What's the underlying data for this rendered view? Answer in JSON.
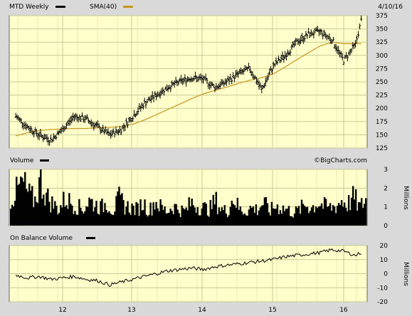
{
  "header": {
    "symbol_label": "MTD Weekly",
    "sma_label": "SMA(40)",
    "date": "4/10/16"
  },
  "volume_panel": {
    "label": "Volume",
    "units": "Millions"
  },
  "obv_panel": {
    "label": "On Balance Volume",
    "units": "Millions"
  },
  "watermark": "©BigCharts.com",
  "colors": {
    "background": "#d9d9d9",
    "plot_background": "#ffffcc",
    "grid": "#c8c890",
    "price": "#000000",
    "sma": "#c8961e",
    "volume": "#000000"
  },
  "chart_data": [
    {
      "type": "line",
      "name": "price",
      "series": [
        {
          "name": "MTD Weekly",
          "x": [
            "2011-05",
            "2011-07",
            "2011-09",
            "2011-11",
            "2012-01",
            "2012-03",
            "2012-05",
            "2012-07",
            "2012-09",
            "2012-11",
            "2013-01",
            "2013-03",
            "2013-05",
            "2013-07",
            "2013-09",
            "2013-11",
            "2014-01",
            "2014-03",
            "2014-05",
            "2014-07",
            "2014-09",
            "2014-11",
            "2015-01",
            "2015-03",
            "2015-05",
            "2015-07",
            "2015-09",
            "2015-11",
            "2016-01",
            "2016-03",
            "2016-04"
          ],
          "values": [
            185,
            165,
            150,
            140,
            160,
            185,
            180,
            165,
            150,
            160,
            185,
            210,
            225,
            240,
            250,
            258,
            255,
            240,
            250,
            265,
            275,
            235,
            280,
            300,
            325,
            340,
            345,
            330,
            290,
            320,
            365
          ]
        },
        {
          "name": "SMA(40)",
          "x": [
            "2011-05",
            "2011-07",
            "2011-09",
            "2011-11",
            "2012-01",
            "2012-03",
            "2012-05",
            "2012-07",
            "2012-09",
            "2012-11",
            "2013-01",
            "2013-03",
            "2013-05",
            "2013-07",
            "2013-09",
            "2013-11",
            "2014-01",
            "2014-03",
            "2014-05",
            "2014-07",
            "2014-09",
            "2014-11",
            "2015-01",
            "2015-03",
            "2015-05",
            "2015-07",
            "2015-09",
            "2015-11",
            "2016-01",
            "2016-03",
            "2016-04"
          ],
          "values": [
            148,
            154,
            158,
            160,
            161,
            162,
            162,
            163,
            164,
            166,
            170,
            178,
            188,
            198,
            208,
            218,
            227,
            234,
            240,
            247,
            253,
            258,
            265,
            278,
            292,
            305,
            318,
            325,
            322,
            322,
            322
          ]
        }
      ],
      "ylim": [
        125,
        375
      ],
      "yticks": [
        125,
        150,
        175,
        200,
        225,
        250,
        275,
        300,
        325,
        350,
        375
      ],
      "xticks": [
        "12",
        "13",
        "14",
        "15",
        "16"
      ],
      "grid": true
    },
    {
      "type": "bar",
      "name": "volume",
      "series": [
        {
          "name": "Volume",
          "values": [
            1.5,
            1.9,
            2.4,
            1.7,
            1.4,
            2.6,
            1.6,
            1.2,
            0.9,
            1.5,
            1.3,
            1.1,
            0.9,
            1.4,
            1.2,
            1.0,
            1.3,
            0.8,
            1.5,
            1.1,
            1.0,
            0.9,
            1.3,
            0.8,
            1.4,
            1.0,
            0.8,
            1.1,
            0.9,
            0.8,
            1.3,
            1.1,
            1.0,
            0.9,
            1.4,
            0.9,
            0.8,
            1.6,
            0.9,
            0.8,
            1.0,
            0.9,
            1.3,
            0.8,
            1.1,
            1.0,
            0.9,
            0.7,
            0.9,
            1.2,
            1.0,
            1.3,
            1.1,
            1.0,
            1.1,
            1.4,
            1.2,
            1.6,
            1.0,
            1.5
          ]
        }
      ],
      "ylim": [
        0,
        3
      ],
      "yticks": [
        0,
        1,
        2,
        3
      ],
      "grid": true
    },
    {
      "type": "line",
      "name": "on-balance-volume",
      "series": [
        {
          "name": "On Balance Volume",
          "x": [
            "2011-05",
            "2011-07",
            "2011-09",
            "2011-11",
            "2012-01",
            "2012-03",
            "2012-05",
            "2012-07",
            "2012-09",
            "2012-11",
            "2013-01",
            "2013-03",
            "2013-05",
            "2013-07",
            "2013-09",
            "2013-11",
            "2014-01",
            "2014-03",
            "2014-05",
            "2014-07",
            "2014-09",
            "2014-11",
            "2015-01",
            "2015-03",
            "2015-05",
            "2015-07",
            "2015-09",
            "2015-11",
            "2016-01",
            "2016-03",
            "2016-04"
          ],
          "values": [
            -1,
            -3,
            -2,
            -4,
            -3,
            -2,
            -4,
            -5,
            -8,
            -6,
            -4,
            -2,
            0,
            2,
            3,
            4,
            3,
            5,
            6,
            7,
            8,
            9,
            10,
            12,
            13,
            14,
            15,
            17,
            16,
            13,
            15
          ]
        }
      ],
      "ylim": [
        -20,
        20
      ],
      "yticks": [
        -20,
        -10,
        0,
        10,
        20
      ],
      "grid": true
    }
  ]
}
